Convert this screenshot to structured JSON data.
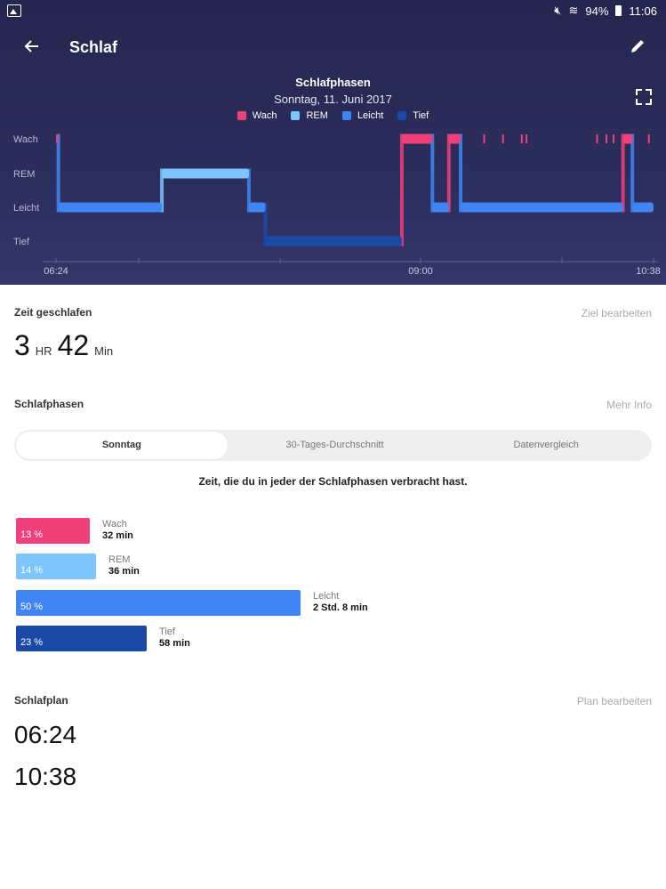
{
  "status_bar": {
    "battery": "94%",
    "time": "11:06"
  },
  "header": {
    "title": "Schlaf"
  },
  "chart_data": {
    "type": "sleep-stages",
    "title": "Schlafphasen",
    "subtitle": "Sonntag, 11. Juni 2017",
    "stages": [
      "Wach",
      "REM",
      "Leicht",
      "Tief"
    ],
    "legend": [
      {
        "name": "Wach",
        "color": "#f0407a"
      },
      {
        "name": "REM",
        "color": "#7ec4ff"
      },
      {
        "name": "Leicht",
        "color": "#3f86f4"
      },
      {
        "name": "Tief",
        "color": "#1a4aa6"
      }
    ],
    "x_ticks": [
      "06:24",
      "09:00",
      "10:38"
    ],
    "x_range_min": [
      0,
      254
    ],
    "segments": [
      {
        "stage": "Wach",
        "start_min": 0,
        "end_min": 1
      },
      {
        "stage": "Leicht",
        "start_min": 1,
        "end_min": 45
      },
      {
        "stage": "REM",
        "start_min": 45,
        "end_min": 82
      },
      {
        "stage": "Leicht",
        "start_min": 82,
        "end_min": 89
      },
      {
        "stage": "Tief",
        "start_min": 89,
        "end_min": 147
      },
      {
        "stage": "Wach",
        "start_min": 147,
        "end_min": 160
      },
      {
        "stage": "Leicht",
        "start_min": 160,
        "end_min": 167
      },
      {
        "stage": "Wach",
        "start_min": 167,
        "end_min": 172
      },
      {
        "stage": "Leicht",
        "start_min": 172,
        "end_min": 241
      },
      {
        "stage": "Wach",
        "start_min": 241,
        "end_min": 245
      },
      {
        "stage": "Leicht",
        "start_min": 245,
        "end_min": 254
      }
    ],
    "awake_blips_min": [
      182,
      190,
      198,
      200,
      230,
      234,
      237,
      252
    ]
  },
  "sleep_time": {
    "label": "Zeit geschlafen",
    "edit_link": "Ziel bearbeiten",
    "hours": "3",
    "hours_unit": "HR",
    "minutes": "42",
    "minutes_unit": "Min"
  },
  "stages_section": {
    "label": "Schlafphasen",
    "link": "Mehr Info",
    "tabs": [
      "Sonntag",
      "30-Tages-Durchschnitt",
      "Datenvergleich"
    ],
    "active_tab": 0,
    "caption": "Zeit, die du in jeder der Schlafphasen verbracht hast.",
    "bars": [
      {
        "name": "Wach",
        "percent_label": "13 %",
        "duration": "32 min",
        "fraction": 0.13,
        "color": "#f0407a"
      },
      {
        "name": "REM",
        "percent_label": "14 %",
        "duration": "36 min",
        "fraction": 0.14,
        "color": "#7ec4ff"
      },
      {
        "name": "Leicht",
        "percent_label": "50 %",
        "duration": "2 Std. 8 min",
        "fraction": 0.5,
        "color": "#3f86f4"
      },
      {
        "name": "Tief",
        "percent_label": "23 %",
        "duration": "58 min",
        "fraction": 0.23,
        "color": "#1a4aa6"
      }
    ]
  },
  "plan": {
    "label": "Schlafplan",
    "link": "Plan bearbeiten",
    "start": "06:24",
    "end": "10:38"
  }
}
